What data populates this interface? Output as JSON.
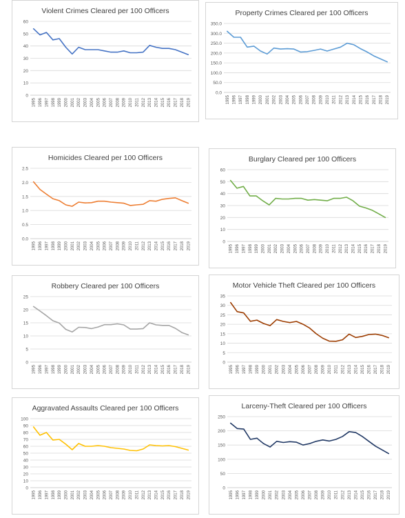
{
  "chart_data": [
    {
      "type": "line",
      "title": "Violent Crimes Cleared per 100 Officers",
      "color": "#4472c4",
      "ylim": [
        0,
        60
      ],
      "ytick_step": 10,
      "ytick_decimals": 0,
      "grid": true,
      "categories": [
        "1995",
        "1996",
        "1997",
        "1998",
        "1999",
        "2000",
        "2001",
        "2002",
        "2003",
        "2004",
        "2005",
        "2006",
        "2007",
        "2008",
        "2009",
        "2010",
        "2011",
        "2012",
        "2013",
        "2014",
        "2015",
        "2016",
        "2017",
        "2018",
        "2019"
      ],
      "values": [
        54,
        49,
        51,
        45,
        46,
        39,
        33.5,
        39,
        37,
        37,
        37,
        36,
        35,
        35,
        36,
        34.5,
        34.5,
        35,
        40.5,
        39,
        38,
        38,
        37,
        35,
        33
      ]
    },
    {
      "type": "line",
      "title": "Property Crimes Cleared per 100 Officers",
      "color": "#5b9bd5",
      "ylim": [
        0,
        350
      ],
      "ytick_step": 50,
      "ytick_decimals": 1,
      "grid": true,
      "categories": [
        "1995",
        "1996",
        "1997",
        "1998",
        "1999",
        "2000",
        "2001",
        "2002",
        "2003",
        "2004",
        "2005",
        "2006",
        "2007",
        "2008",
        "2009",
        "2010",
        "2011",
        "2012",
        "2013",
        "2014",
        "2015",
        "2016",
        "2017",
        "2018",
        "2019"
      ],
      "values": [
        310,
        280,
        280,
        230,
        235,
        210,
        195,
        225,
        220,
        222,
        220,
        205,
        207,
        213,
        220,
        210,
        220,
        230,
        250,
        242,
        222,
        205,
        185,
        170,
        155
      ]
    },
    {
      "type": "line",
      "title": "Homicides Cleared per 100 Officers",
      "color": "#ed7d31",
      "ylim": [
        0,
        2.5
      ],
      "ytick_step": 0.5,
      "ytick_decimals": 1,
      "grid": true,
      "categories": [
        "1995",
        "1996",
        "1997",
        "1998",
        "1999",
        "2000",
        "2001",
        "2002",
        "2003",
        "2004",
        "2005",
        "2006",
        "2007",
        "2008",
        "2009",
        "2010",
        "2011",
        "2012",
        "2013",
        "2014",
        "2015",
        "2016",
        "2017",
        "2018",
        "2019"
      ],
      "values": [
        2.02,
        1.75,
        1.58,
        1.42,
        1.35,
        1.2,
        1.15,
        1.3,
        1.27,
        1.28,
        1.33,
        1.33,
        1.3,
        1.28,
        1.26,
        1.18,
        1.2,
        1.22,
        1.35,
        1.33,
        1.4,
        1.43,
        1.45,
        1.35,
        1.26
      ]
    },
    {
      "type": "line",
      "title": "Burglary Cleared per 100 Officers",
      "color": "#70ad47",
      "ylim": [
        0,
        60
      ],
      "ytick_step": 10,
      "ytick_decimals": 0,
      "grid": true,
      "categories": [
        "1995",
        "1996",
        "1997",
        "1998",
        "1999",
        "2000",
        "2001",
        "2002",
        "2003",
        "2004",
        "2005",
        "2006",
        "2007",
        "2008",
        "2009",
        "2010",
        "2011",
        "2012",
        "2013",
        "2014",
        "2015",
        "2016",
        "2017",
        "2018",
        "2019"
      ],
      "values": [
        51,
        44.5,
        46,
        38,
        38,
        34,
        30.5,
        36,
        35.5,
        35.5,
        36,
        36,
        34.5,
        35,
        34.5,
        34,
        36,
        36,
        37,
        34,
        29.5,
        28,
        26,
        23,
        20
      ]
    },
    {
      "type": "line",
      "title": "Robbery Cleared per 100 Officers",
      "color": "#a5a5a5",
      "ylim": [
        0,
        25
      ],
      "ytick_step": 5,
      "ytick_decimals": 0,
      "grid": true,
      "categories": [
        "1995",
        "1996",
        "1997",
        "1998",
        "1999",
        "2000",
        "2001",
        "2002",
        "2003",
        "2004",
        "2005",
        "2006",
        "2007",
        "2008",
        "2009",
        "2010",
        "2011",
        "2012",
        "2013",
        "2014",
        "2015",
        "2016",
        "2017",
        "2018",
        "2019"
      ],
      "values": [
        21.2,
        19.5,
        17.7,
        15.8,
        14.9,
        12.5,
        11.5,
        13.3,
        13.2,
        12.8,
        13.4,
        14.3,
        14.3,
        14.6,
        14.2,
        12.6,
        12.6,
        12.8,
        15,
        14.2,
        14,
        14,
        12.9,
        11.3,
        10.4
      ]
    },
    {
      "type": "line",
      "title": "Motor Vehicle Theft Cleared per 100 Officers",
      "color": "#9c3c00",
      "ylim": [
        0,
        35
      ],
      "ytick_step": 5,
      "ytick_decimals": 0,
      "grid": true,
      "categories": [
        "1995",
        "1996",
        "1997",
        "1998",
        "1999",
        "2000",
        "2001",
        "2002",
        "2003",
        "2004",
        "2005",
        "2006",
        "2007",
        "2008",
        "2009",
        "2010",
        "2011",
        "2012",
        "2013",
        "2014",
        "2015",
        "2016",
        "2017",
        "2018",
        "2019"
      ],
      "values": [
        31.5,
        26.7,
        26,
        21.6,
        22.2,
        20.4,
        19.3,
        22.5,
        21.5,
        20.9,
        21.5,
        20,
        18,
        15,
        12.6,
        11.1,
        11,
        11.8,
        14.8,
        13,
        13.6,
        14.6,
        14.8,
        14.1,
        12.9
      ]
    },
    {
      "type": "line",
      "title": "Aggravated Assaults Cleared per 100 Officers",
      "color": "#ffc000",
      "ylim": [
        0,
        100
      ],
      "ytick_step": 10,
      "ytick_decimals": 0,
      "grid": true,
      "categories": [
        "1995",
        "1996",
        "1997",
        "1998",
        "1999",
        "2000",
        "2001",
        "2002",
        "2003",
        "2004",
        "2005",
        "2006",
        "2007",
        "2008",
        "2009",
        "2010",
        "2011",
        "2012",
        "2013",
        "2014",
        "2015",
        "2016",
        "2017",
        "2018",
        "2019"
      ],
      "values": [
        88,
        76,
        80,
        69,
        70,
        63,
        55,
        64,
        60,
        60,
        61,
        60,
        58,
        57,
        56,
        54,
        53.5,
        56,
        62,
        61,
        60.5,
        61,
        59.5,
        57,
        54.5
      ]
    },
    {
      "type": "line",
      "title": "Larceny-Theft Cleared per 100 Officers",
      "color": "#203864",
      "ylim": [
        0,
        250
      ],
      "ytick_step": 50,
      "ytick_decimals": 0,
      "grid": true,
      "categories": [
        "1995",
        "1996",
        "1997",
        "1998",
        "1999",
        "2000",
        "2001",
        "2002",
        "2003",
        "2004",
        "2005",
        "2006",
        "2007",
        "2008",
        "2009",
        "2010",
        "2011",
        "2012",
        "2013",
        "2014",
        "2015",
        "2016",
        "2017",
        "2018",
        "2019"
      ],
      "values": [
        227,
        208,
        206,
        170,
        174,
        155,
        143,
        163,
        159,
        162,
        160,
        150,
        155,
        163,
        168,
        164,
        170,
        180,
        197,
        194,
        180,
        163,
        146,
        133,
        120
      ]
    }
  ]
}
